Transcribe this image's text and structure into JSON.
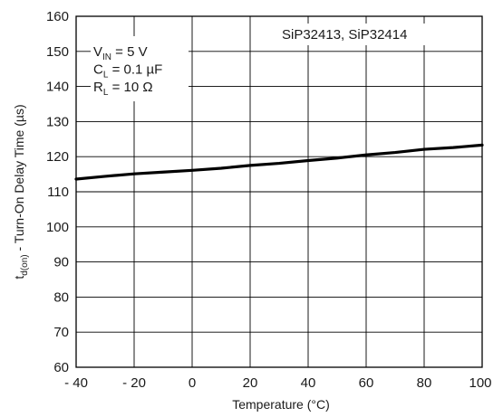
{
  "chart_data": {
    "type": "line",
    "title": "",
    "xlabel": "Temperature (°C)",
    "ylabel": {
      "main": "t",
      "sub": "d(on)",
      "rest": " - Turn-On Delay Time (µs)"
    },
    "xlim": [
      -40,
      100
    ],
    "ylim": [
      60,
      160
    ],
    "x_ticks": [
      -40,
      -20,
      0,
      20,
      40,
      60,
      80,
      100
    ],
    "x_tick_labels": [
      "- 40",
      "- 20",
      "0",
      "20",
      "40",
      "60",
      "80",
      "100"
    ],
    "y_ticks": [
      60,
      70,
      80,
      90,
      100,
      110,
      120,
      130,
      140,
      150,
      160
    ],
    "y_tick_labels": [
      "60",
      "70",
      "80",
      "90",
      "100",
      "110",
      "120",
      "130",
      "140",
      "150",
      "160"
    ],
    "grid": true,
    "legend": "top-right",
    "series": [
      {
        "x": [
          -40,
          -30,
          -20,
          -10,
          0,
          10,
          20,
          30,
          40,
          50,
          60,
          70,
          80,
          90,
          100
        ],
        "y": [
          113.6,
          114.4,
          115.1,
          115.6,
          116.1,
          116.7,
          117.5,
          118.1,
          118.9,
          119.6,
          120.5,
          121.2,
          122.1,
          122.6,
          123.3
        ]
      }
    ],
    "annotations": {
      "top_right": "SiP32413, SiP32414",
      "conditions": [
        {
          "main": "V",
          "sub": "IN",
          "rest": " = 5 V"
        },
        {
          "main": "C",
          "sub": "L",
          "rest": " = 0.1 µF"
        },
        {
          "main": "R",
          "sub": "L",
          "rest": " = 10 Ω"
        }
      ]
    },
    "colors": {
      "line": "#000000",
      "grid": "#000000",
      "text": "#1a1a1a"
    }
  }
}
